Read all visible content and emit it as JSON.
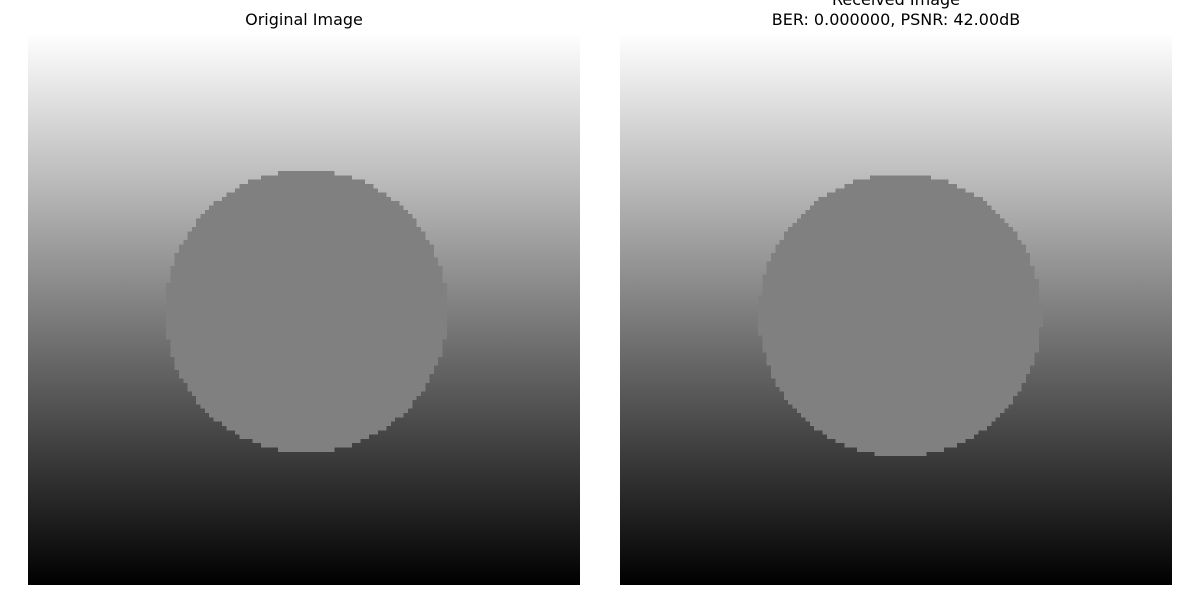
{
  "original": {
    "title": "Original Image"
  },
  "received": {
    "title": "Received Image",
    "metrics": "BER: 0.000000, PSNR: 42.00dB"
  },
  "colors": {
    "background": "#ffffff",
    "circle_fill": "#808080",
    "gradient_top": "#ffffff",
    "gradient_bottom": "#000000"
  }
}
